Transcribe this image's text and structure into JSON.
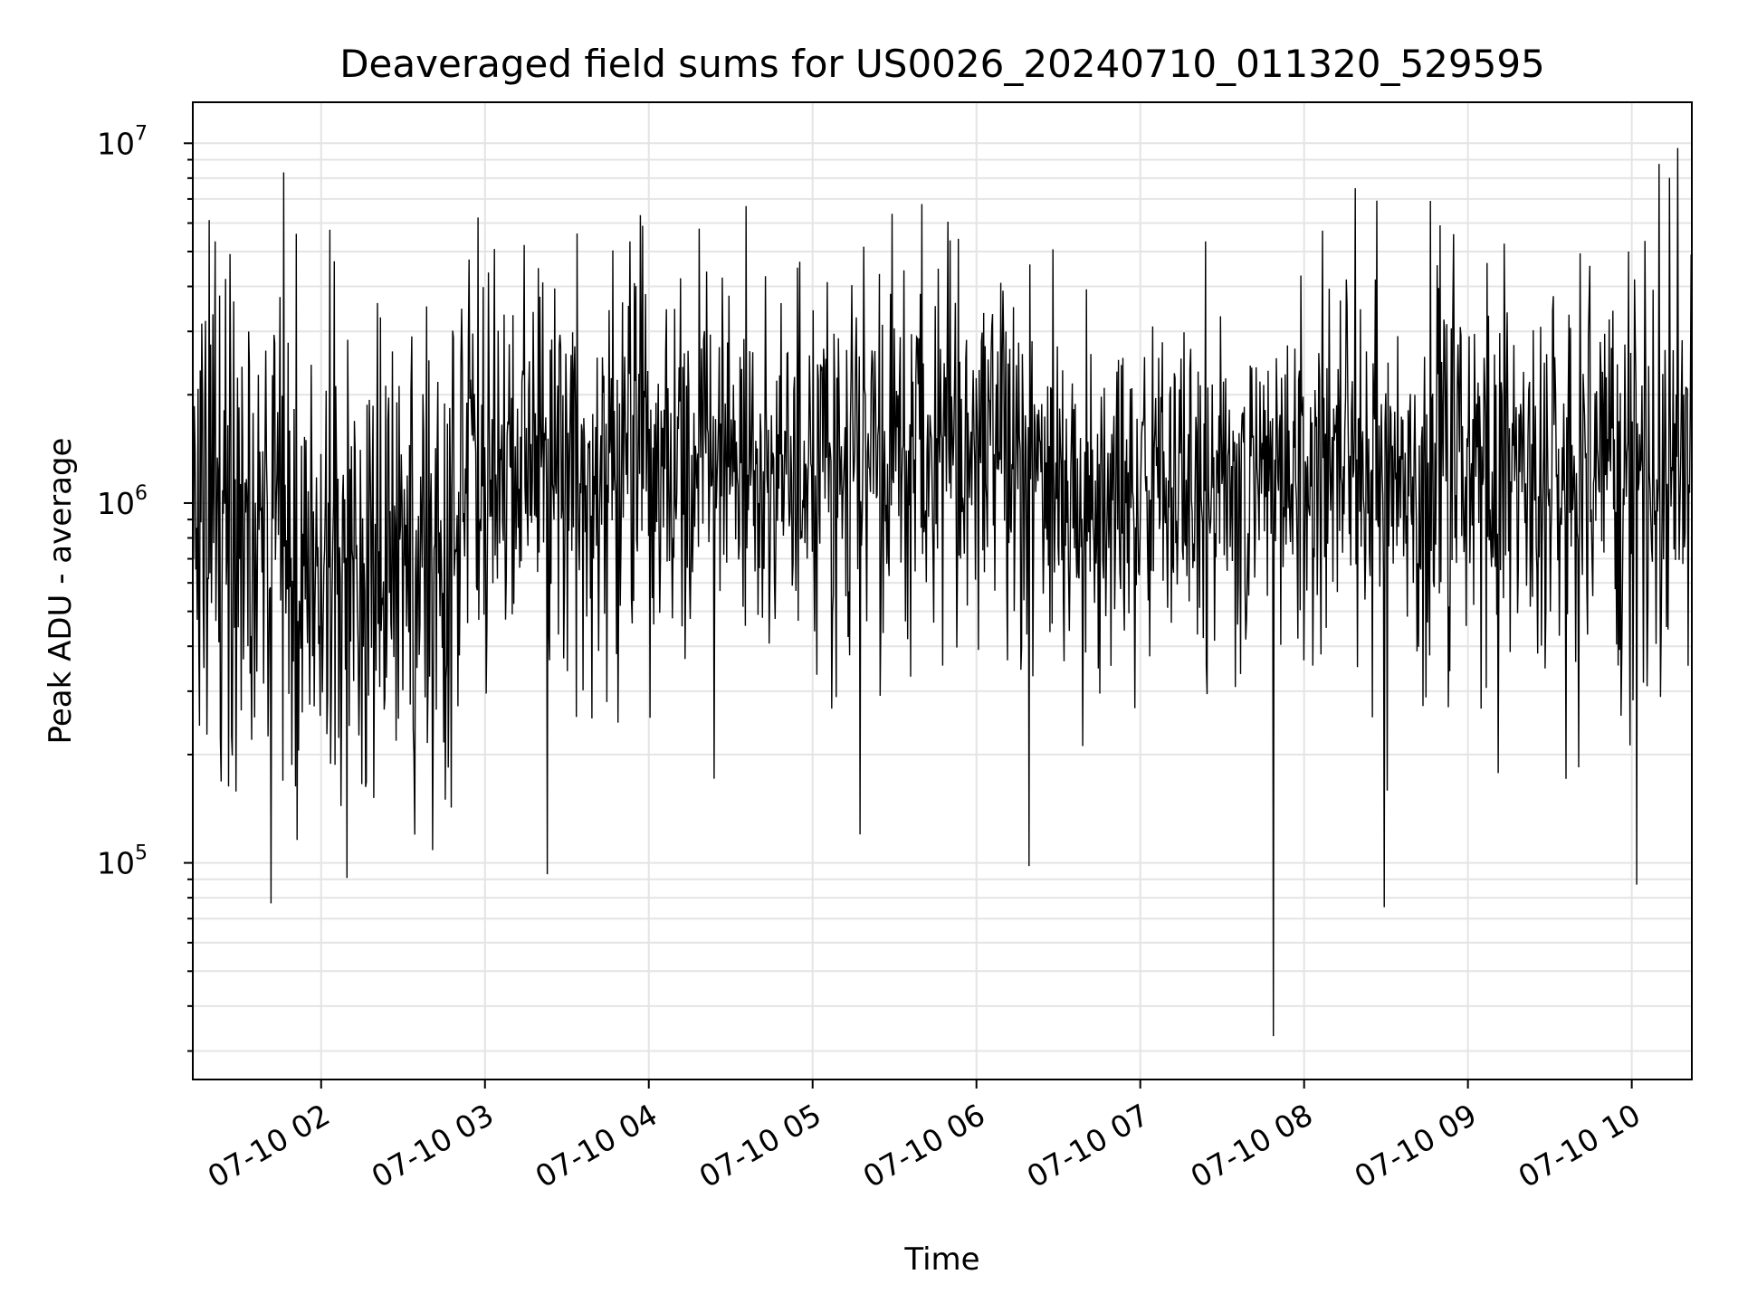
{
  "chart_data": {
    "type": "line",
    "title": "Deaveraged field sums for US0026_20240710_011320_529595",
    "xlabel": "Time",
    "ylabel": "Peak ADU - average",
    "x_range": [
      "07-10 01:13",
      "07-10 10:22"
    ],
    "ylim": [
      25000,
      13000000
    ],
    "yscale": "log",
    "grid": true,
    "line_color": "#000000",
    "x_tick_labels": [
      "07-10 02",
      "07-10 03",
      "07-10 04",
      "07-10 05",
      "07-10 06",
      "07-10 07",
      "07-10 08",
      "07-10 09",
      "07-10 10"
    ],
    "x_tick_hours": [
      2,
      3,
      4,
      5,
      6,
      7,
      8,
      9,
      10
    ],
    "y_ticks": [
      {
        "value": 100000,
        "base": "10",
        "exp": "5"
      },
      {
        "value": 1000000,
        "base": "10",
        "exp": "6"
      },
      {
        "value": 10000000,
        "base": "10",
        "exp": "7"
      }
    ],
    "series": [
      {
        "samples_per_hour": 220,
        "segments": [
          {
            "start": 1.217,
            "end": 1.75,
            "median": 1000000,
            "spread": 0.4
          },
          {
            "start": 1.75,
            "end": 2.85,
            "median": 700000,
            "spread": 0.33
          },
          {
            "start": 2.85,
            "end": 4.0,
            "median": 1300000,
            "spread": 0.28
          },
          {
            "start": 4.0,
            "end": 6.5,
            "median": 1350000,
            "spread": 0.26
          },
          {
            "start": 6.5,
            "end": 7.6,
            "median": 1000000,
            "spread": 0.24
          },
          {
            "start": 7.6,
            "end": 8.85,
            "median": 1200000,
            "spread": 0.26
          },
          {
            "start": 8.85,
            "end": 10.367,
            "median": 1200000,
            "spread": 0.3
          }
        ],
        "spikes": [
          {
            "time": 1.77,
            "value": 8300000
          },
          {
            "time": 1.85,
            "value": 5600000
          },
          {
            "time": 2.08,
            "value": 4700000
          },
          {
            "time": 1.2,
            "value": 5200000
          },
          {
            "time": 3.38,
            "value": 93000
          },
          {
            "time": 5.29,
            "value": 120000
          },
          {
            "time": 6.32,
            "value": 98000
          },
          {
            "time": 7.81,
            "value": 33000
          },
          {
            "time": 9.98,
            "value": 5000000
          },
          {
            "time": 10.03,
            "value": 87000
          },
          {
            "time": 10.28,
            "value": 9700000
          },
          {
            "time": 5.87,
            "value": 3600000
          }
        ]
      }
    ]
  }
}
